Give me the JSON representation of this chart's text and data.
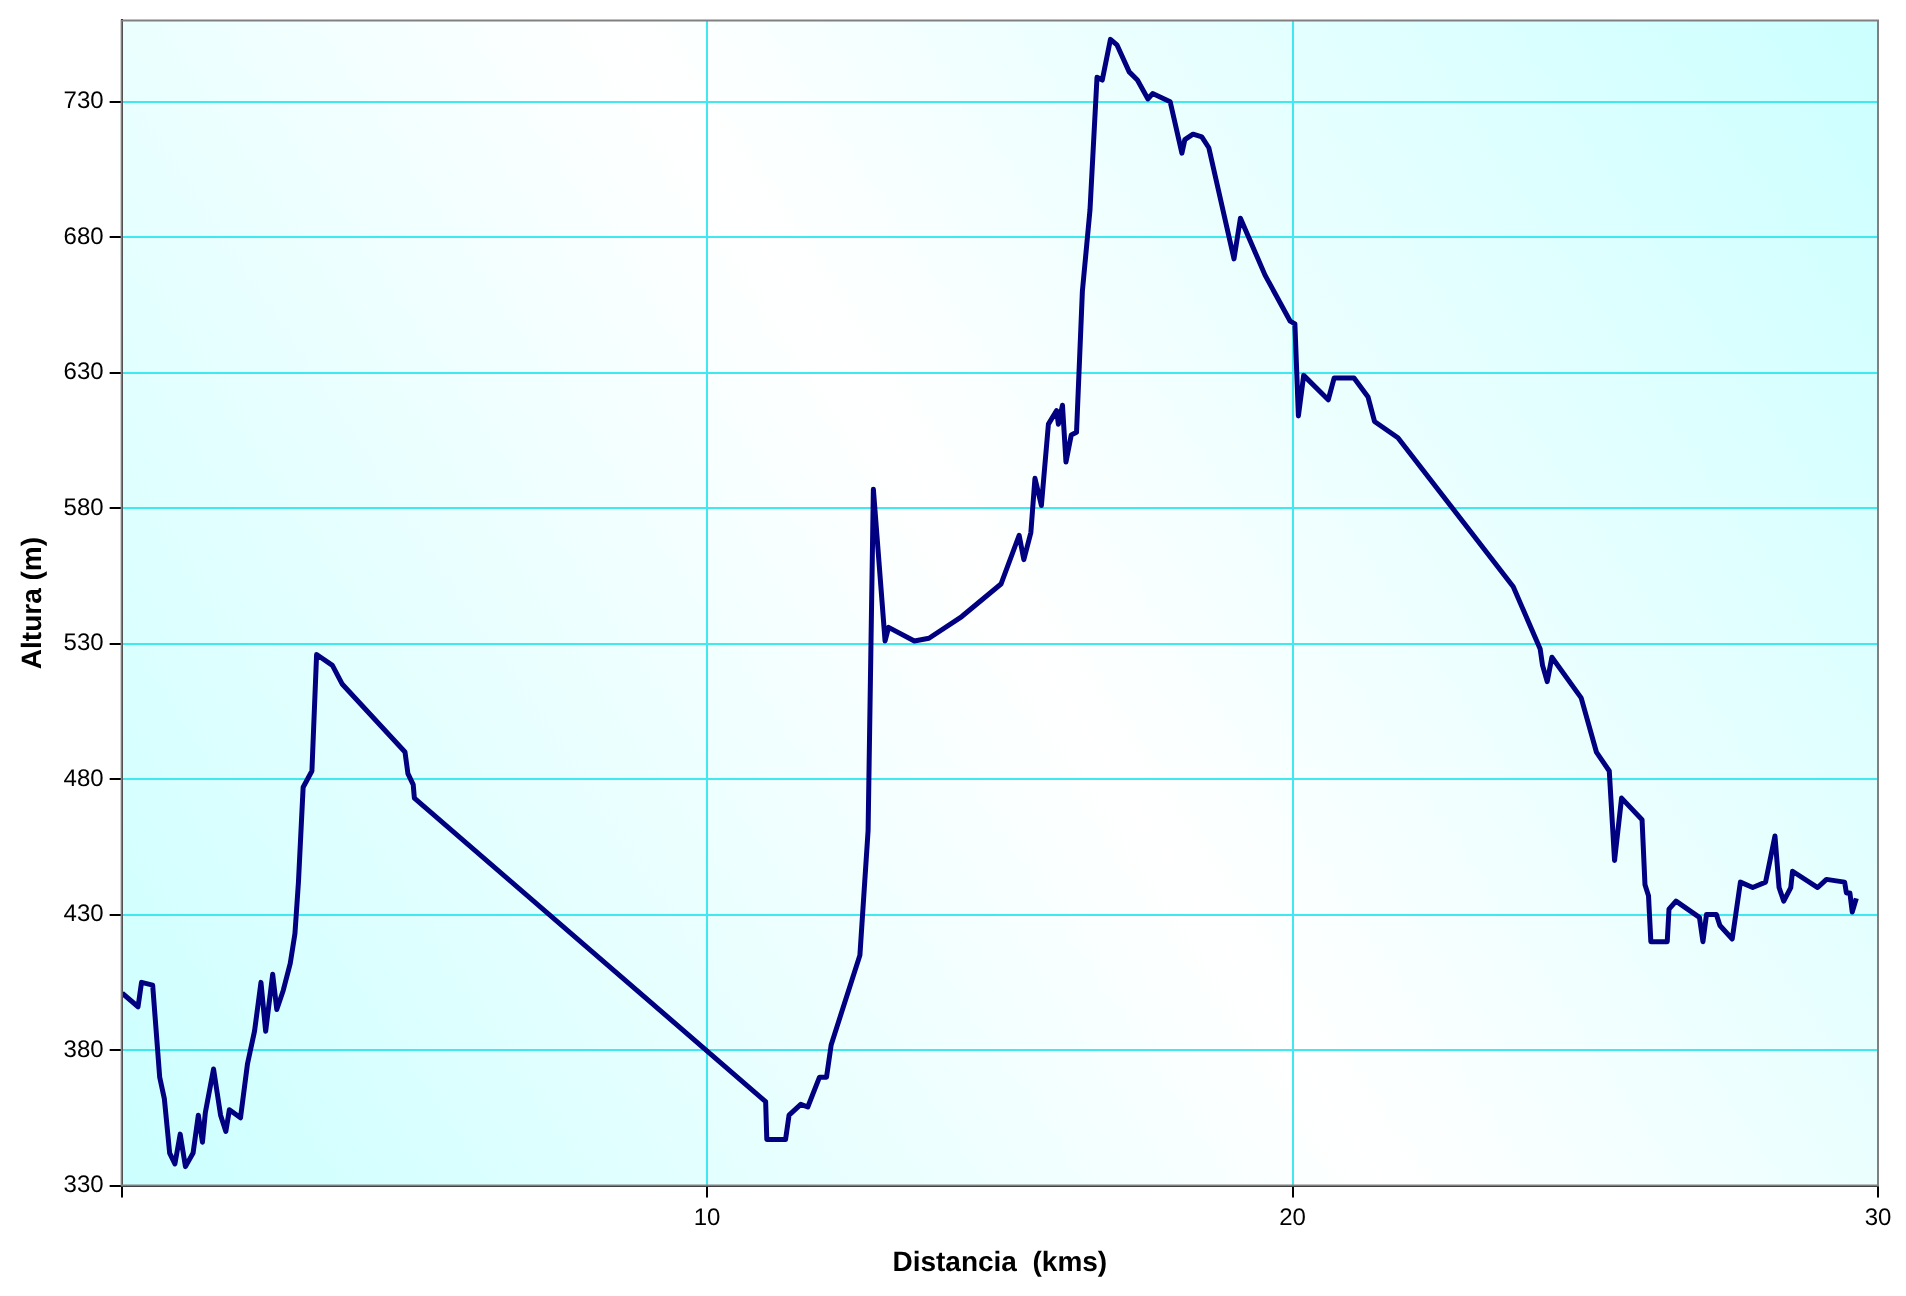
{
  "chart_data": {
    "type": "line",
    "xlabel": "Distancia  (kms)",
    "ylabel": "Altura (m)",
    "xlim": [
      0,
      30
    ],
    "ylim": [
      330,
      760
    ],
    "xticks": [
      {
        "value": 0,
        "label": null
      },
      10,
      20,
      30
    ],
    "yticks": [
      330,
      380,
      430,
      480,
      530,
      580,
      630,
      680,
      730
    ],
    "grid": true,
    "legend": false,
    "marker": "none",
    "line_style": "solid",
    "series": [
      {
        "color": "#000080",
        "x": [
          0.01,
          0.28,
          0.34,
          0.53,
          0.65,
          0.73,
          0.82,
          0.91,
          1.0,
          1.09,
          1.22,
          1.31,
          1.38,
          1.43,
          1.57,
          1.69,
          1.78,
          1.84,
          2.03,
          2.15,
          2.27,
          2.38,
          2.46,
          2.58,
          2.65,
          2.76,
          2.88,
          2.96,
          3.02,
          3.1,
          3.25,
          3.33,
          3.6,
          3.77,
          4.84,
          4.89,
          4.98,
          5.0,
          11.0,
          11.02,
          11.34,
          11.4,
          11.6,
          11.72,
          11.92,
          12.04,
          12.12,
          12.61,
          12.75,
          12.84,
          13.04,
          13.1,
          13.54,
          13.79,
          14.35,
          15.02,
          15.33,
          15.41,
          15.53,
          15.6,
          15.71,
          15.83,
          15.97,
          16.0,
          16.07,
          16.13,
          16.22,
          16.31,
          16.41,
          16.54,
          16.66,
          16.75,
          16.89,
          17.0,
          17.21,
          17.35,
          17.53,
          17.61,
          17.91,
          18.11,
          18.16,
          18.3,
          18.45,
          18.57,
          19.0,
          19.11,
          19.53,
          19.96,
          20.04,
          20.1,
          20.19,
          20.61,
          20.71,
          21.05,
          21.29,
          21.4,
          21.8,
          23.77,
          24.23,
          24.27,
          24.35,
          24.43,
          24.93,
          25.19,
          25.41,
          25.5,
          25.62,
          25.97,
          26.02,
          26.08,
          26.12,
          26.4,
          26.43,
          26.55,
          26.95,
          27.01,
          27.07,
          27.24,
          27.3,
          27.51,
          27.65,
          27.86,
          28.08,
          28.24,
          28.31,
          28.39,
          28.51,
          28.54,
          28.97,
          29.12,
          29.43,
          29.46,
          29.52,
          29.56,
          29.63
        ],
        "values": [
          401,
          396,
          405,
          404,
          370,
          362,
          342,
          338,
          349,
          337,
          342,
          356,
          346,
          357,
          373,
          356,
          350,
          358,
          355,
          375,
          387,
          405,
          387,
          408,
          395,
          402,
          412,
          423,
          442,
          477,
          483,
          526,
          522,
          515,
          490,
          482,
          478,
          473,
          361,
          347,
          347,
          356,
          360,
          359,
          370,
          370,
          382,
          415,
          461,
          587,
          531,
          536,
          531,
          532,
          540,
          552,
          570,
          561,
          571,
          591,
          581,
          611,
          616,
          611,
          618,
          597,
          607,
          608,
          660,
          690,
          739,
          738,
          753,
          751,
          741,
          738,
          731,
          733,
          730,
          711,
          716,
          718,
          717,
          713,
          672,
          687,
          666,
          649,
          648,
          614,
          629,
          620,
          628,
          628,
          621,
          612,
          606,
          551,
          528,
          522,
          516,
          525,
          510,
          490,
          483,
          450,
          473,
          465,
          441,
          437,
          420,
          420,
          432,
          435,
          429,
          420,
          430,
          430,
          426,
          421,
          442,
          440,
          442,
          459,
          440,
          435,
          440,
          446,
          440,
          443,
          442,
          438,
          438,
          431,
          436
        ]
      }
    ]
  }
}
